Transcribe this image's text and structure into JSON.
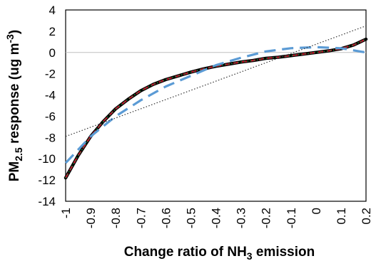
{
  "chart_data": {
    "type": "line",
    "xlabel": "Change ratio of NH",
    "xlabel_sub": "3",
    "xlabel_suffix": " emission",
    "ylabel": "PM",
    "ylabel_sub": "2.5",
    "ylabel_suffix": " response (ug m",
    "ylabel_sup": "-3",
    "ylabel_end": ")",
    "xlim": [
      -1,
      0.2
    ],
    "ylim": [
      -14,
      4
    ],
    "x_ticks": [
      -1,
      -0.9,
      -0.8,
      -0.7,
      -0.6,
      -0.5,
      -0.4,
      -0.3,
      -0.2,
      -0.1,
      0,
      0.1,
      0.2
    ],
    "x_tick_labels": [
      "-1",
      "-0.9",
      "-0.8",
      "-0.7",
      "-0.6",
      "-0.5",
      "-0.4",
      "-0.3",
      "-0.2",
      "-0.1",
      "0",
      "0.1",
      "0.2"
    ],
    "y_ticks": [
      -14,
      -12,
      -10,
      -8,
      -6,
      -4,
      -2,
      0,
      2,
      4
    ],
    "y_tick_labels": [
      "-14",
      "-12",
      "-10",
      "-8",
      "-6",
      "-4",
      "-2",
      "0",
      "2",
      "4"
    ],
    "zero_line": true,
    "grid": false,
    "series": [
      {
        "style": "black-solid",
        "color": "#000000",
        "x": [
          -1,
          -0.95,
          -0.9,
          -0.85,
          -0.8,
          -0.75,
          -0.7,
          -0.65,
          -0.6,
          -0.55,
          -0.5,
          -0.45,
          -0.4,
          -0.35,
          -0.3,
          -0.25,
          -0.2,
          -0.15,
          -0.1,
          -0.05,
          0,
          0.05,
          0.1,
          0.15,
          0.2
        ],
        "values": [
          -11.8,
          -9.7,
          -7.9,
          -6.5,
          -5.3,
          -4.4,
          -3.6,
          -3.0,
          -2.55,
          -2.2,
          -1.85,
          -1.55,
          -1.3,
          -1.1,
          -0.9,
          -0.75,
          -0.55,
          -0.45,
          -0.3,
          -0.15,
          0,
          0.15,
          0.35,
          0.7,
          1.25
        ]
      },
      {
        "style": "red-dashed",
        "color": "#c8102e",
        "x": [
          -1,
          -0.95,
          -0.9,
          -0.85,
          -0.8,
          -0.75,
          -0.7,
          -0.65,
          -0.6,
          -0.55,
          -0.5,
          -0.45,
          -0.4,
          -0.35,
          -0.3,
          -0.25,
          -0.2,
          -0.15,
          -0.1,
          -0.05,
          0,
          0.05,
          0.1,
          0.15,
          0.2
        ],
        "values": [
          -11.8,
          -9.7,
          -7.9,
          -6.5,
          -5.3,
          -4.4,
          -3.6,
          -3.0,
          -2.55,
          -2.2,
          -1.85,
          -1.55,
          -1.3,
          -1.1,
          -0.9,
          -0.75,
          -0.55,
          -0.45,
          -0.3,
          -0.15,
          0,
          0.15,
          0.35,
          0.7,
          1.25
        ]
      },
      {
        "style": "green-dotted",
        "color": "#2e8b3a",
        "x": [
          -1,
          -0.95,
          -0.9,
          -0.85,
          -0.8,
          -0.75,
          -0.7,
          -0.65,
          -0.6,
          -0.55,
          -0.5,
          -0.45,
          -0.4,
          -0.35,
          -0.3,
          -0.25,
          -0.2,
          -0.15,
          -0.1,
          -0.05,
          0,
          0.05,
          0.1,
          0.15,
          0.2
        ],
        "values": [
          -11.8,
          -9.7,
          -7.9,
          -6.5,
          -5.3,
          -4.4,
          -3.6,
          -3.0,
          -2.55,
          -2.2,
          -1.85,
          -1.55,
          -1.3,
          -1.1,
          -0.9,
          -0.75,
          -0.55,
          -0.45,
          -0.3,
          -0.15,
          0,
          0.15,
          0.35,
          0.7,
          1.25
        ]
      },
      {
        "style": "blue-long-dash",
        "color": "#5b9bd5",
        "x": [
          -1,
          -0.9,
          -0.8,
          -0.7,
          -0.6,
          -0.5,
          -0.4,
          -0.3,
          -0.2,
          -0.1,
          0,
          0.1,
          0.2
        ],
        "values": [
          -10.4,
          -7.9,
          -6.0,
          -4.5,
          -3.2,
          -2.2,
          -1.2,
          -0.5,
          0.1,
          0.4,
          0.5,
          0.4,
          0.0
        ]
      },
      {
        "style": "linear-dotted",
        "color": "#333333",
        "x": [
          -1,
          0.2
        ],
        "values": [
          -7.9,
          2.5
        ]
      }
    ]
  }
}
